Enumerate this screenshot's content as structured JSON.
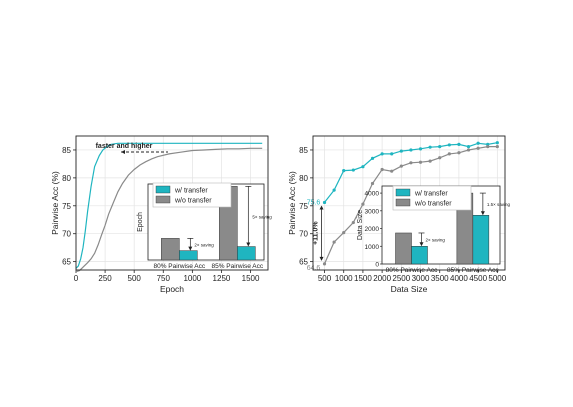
{
  "colors": {
    "transfer": "#1fb5c0",
    "no_transfer": "#8a8a8a",
    "annotation": "#222222"
  },
  "chart_data": [
    {
      "type": "line",
      "xlabel": "Epoch",
      "ylabel": "Pairwise Acc (%)",
      "xlim": [
        0,
        1650
      ],
      "ylim": [
        63.5,
        87.5
      ],
      "xticks": [
        0,
        250,
        500,
        750,
        1000,
        1250,
        1500
      ],
      "yticks": [
        65,
        70,
        75,
        80,
        85
      ],
      "grid": true,
      "annotation": "faster and higher",
      "series": [
        {
          "key": "transfer",
          "x": [
            0,
            20,
            40,
            60,
            80,
            100,
            130,
            160,
            200,
            230,
            260,
            280,
            300,
            330,
            360,
            400,
            450,
            500,
            600,
            800,
            1000,
            1200,
            1400,
            1600
          ],
          "y": [
            63.8,
            64.2,
            65.5,
            67.5,
            70.5,
            74.0,
            78.5,
            82.0,
            84.0,
            85.0,
            85.5,
            85.8,
            86.0,
            86.1,
            86.2,
            86.2,
            86.2,
            86.2,
            86.2,
            86.2,
            86.2,
            86.2,
            86.2,
            86.2
          ]
        },
        {
          "key": "no_transfer",
          "x": [
            0,
            30,
            60,
            100,
            130,
            160,
            190,
            220,
            250,
            280,
            320,
            360,
            400,
            450,
            500,
            550,
            600,
            650,
            700,
            800,
            900,
            1000,
            1100,
            1200,
            1300,
            1400,
            1500,
            1600
          ],
          "y": [
            63.2,
            63.4,
            64.0,
            64.8,
            65.5,
            66.5,
            68.0,
            69.8,
            71.5,
            73.5,
            75.5,
            77.5,
            79.0,
            80.5,
            81.5,
            82.3,
            82.9,
            83.4,
            83.8,
            84.3,
            84.6,
            84.9,
            85.0,
            85.1,
            85.2,
            85.2,
            85.3,
            85.3
          ]
        }
      ],
      "inset": {
        "ylabel": "Epoch",
        "categories": [
          "80% Pairwise Acc",
          "85% Pairwise Acc"
        ],
        "legend": [
          "w/ transfer",
          "w/o transfer"
        ],
        "series": [
          {
            "key": "no_transfer",
            "values": [
              370,
              1260
            ]
          },
          {
            "key": "transfer",
            "values": [
              160,
              230
            ]
          }
        ],
        "ymax": 1300,
        "bracket_labels": [
          "2× saving",
          "5× saving"
        ]
      }
    },
    {
      "type": "line",
      "xlabel": "Data Size",
      "ylabel": "Pairwise Acc (%)",
      "xlim": [
        200,
        5200
      ],
      "ylim": [
        63.5,
        87.5
      ],
      "xticks": [
        500,
        1000,
        1500,
        2000,
        2500,
        3000,
        3500,
        4000,
        4500,
        5000
      ],
      "yticks": [
        65,
        70,
        75,
        80,
        85
      ],
      "grid": true,
      "point_labels": {
        "transfer_first": "75.6",
        "no_transfer_first": "64.6",
        "gap": "+11.0%"
      },
      "series": [
        {
          "key": "transfer",
          "x": [
            500,
            750,
            1000,
            1250,
            1500,
            1750,
            2000,
            2250,
            2500,
            2750,
            3000,
            3250,
            3500,
            3750,
            4000,
            4250,
            4500,
            4750,
            5000
          ],
          "y": [
            75.6,
            77.8,
            81.3,
            81.4,
            82.0,
            83.5,
            84.3,
            84.3,
            84.8,
            85.0,
            85.2,
            85.5,
            85.6,
            85.9,
            86.0,
            85.6,
            86.2,
            86.0,
            86.3
          ]
        },
        {
          "key": "no_transfer",
          "x": [
            500,
            750,
            1000,
            1250,
            1500,
            1750,
            2000,
            2250,
            2500,
            2750,
            3000,
            3250,
            3500,
            3750,
            4000,
            4250,
            4500,
            4750,
            5000
          ],
          "y": [
            64.6,
            68.5,
            70.2,
            72.0,
            75.3,
            79.0,
            81.5,
            81.2,
            82.1,
            82.7,
            82.8,
            83.0,
            83.6,
            84.3,
            84.5,
            85.0,
            85.3,
            85.6,
            85.6
          ]
        }
      ],
      "inset": {
        "ylabel": "Data Size",
        "categories": [
          "80% Pairwise Acc",
          "85% Pairwise Acc"
        ],
        "legend": [
          "w/ transfer",
          "w/o transfer"
        ],
        "yticks": [
          0,
          1000,
          2000,
          3000,
          4000
        ],
        "series": [
          {
            "key": "no_transfer",
            "values": [
              1750,
              4000
            ]
          },
          {
            "key": "transfer",
            "values": [
              1000,
              2750
            ]
          }
        ],
        "ymax": 4400,
        "bracket_labels": [
          "2× saving",
          "1.5× saving"
        ]
      }
    }
  ]
}
